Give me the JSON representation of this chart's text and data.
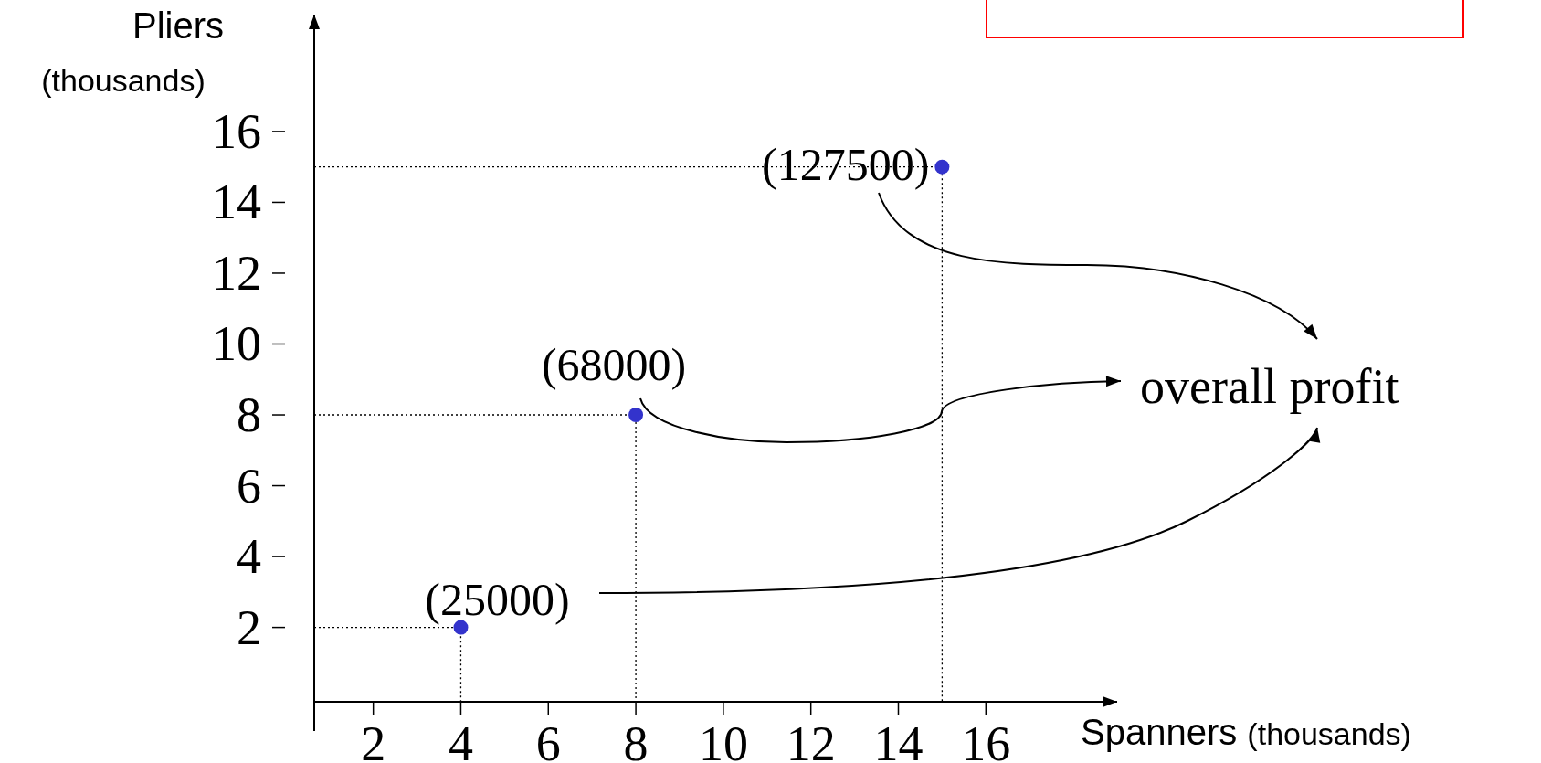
{
  "chart_data": {
    "type": "scatter",
    "xlabel": "Spanners (thousands)",
    "ylabel": "Pliers (thousands)",
    "xlim": [
      0.65,
      19
    ],
    "ylim": [
      -0.1,
      19.3
    ],
    "xticks": [
      2,
      4,
      6,
      8,
      10,
      12,
      14,
      16
    ],
    "yticks": [
      2,
      4,
      6,
      8,
      10,
      12,
      14,
      16
    ],
    "grid": false,
    "marker": "circle",
    "series": [
      {
        "color": "#3333cc",
        "x": [
          4,
          8,
          15
        ],
        "values": [
          2,
          8,
          15
        ]
      },
      {
        "type": "line",
        "color": "#000000",
        "line_style": "dotted",
        "marker": "none",
        "x": [
          0.65,
          4,
          4
        ],
        "values": [
          2,
          2,
          -0.1
        ]
      },
      {
        "type": "line",
        "color": "#000000",
        "line_style": "dotted",
        "marker": "none",
        "x": [
          0.65,
          8,
          8
        ],
        "values": [
          8,
          8,
          -0.1
        ]
      },
      {
        "type": "line",
        "color": "#000000",
        "line_style": "dotted",
        "marker": "none",
        "x": [
          0.65,
          15,
          15
        ],
        "values": [
          15,
          15,
          -0.1
        ]
      }
    ],
    "annotations": [
      {
        "text": "(25000)",
        "x": 4,
        "y": 2
      },
      {
        "text": "(68000)",
        "x": 8,
        "y": 8
      },
      {
        "text": "(127500)",
        "x": 15,
        "y": 15
      },
      "overall profit"
    ]
  }
}
